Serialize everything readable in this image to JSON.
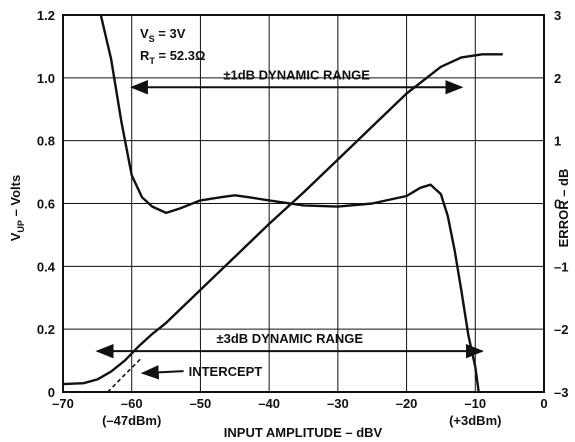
{
  "chart_data": {
    "type": "line",
    "xlabel": "INPUT AMPLITUDE – dBV",
    "ylabel_left": {
      "main": "V",
      "sub": "UP",
      "rest": " – Volts"
    },
    "ylabel_right": "ERROR – dB",
    "xlim": [
      -70,
      0
    ],
    "ylim_left": [
      0,
      1.2
    ],
    "ylim_right": [
      -3,
      3
    ],
    "x_ticks": [
      -70,
      -60,
      -50,
      -40,
      -30,
      -20,
      -10,
      0
    ],
    "x_tick_labels": [
      "–70",
      "–60",
      "–50",
      "–40",
      "–30",
      "–20",
      "–10",
      "0"
    ],
    "y_left_ticks": [
      0,
      0.2,
      0.4,
      0.6,
      0.8,
      1.0,
      1.2
    ],
    "y_left_tick_labels": [
      "0",
      "0.2",
      "0.4",
      "0.6",
      "0.8",
      "1.0",
      "1.2"
    ],
    "y_right_ticks": [
      -3,
      -2,
      -1,
      0,
      1,
      2,
      3
    ],
    "y_right_tick_labels": [
      "–3",
      "–2",
      "–1",
      "0",
      "1",
      "2",
      "3"
    ],
    "grid": true,
    "sub_labels": [
      {
        "x": -60,
        "text": "(–47dBm)"
      },
      {
        "x": -10,
        "text": "(+3dBm)"
      }
    ],
    "conditions": [
      {
        "main": "V",
        "sub": "S",
        "rest": " = 3V"
      },
      {
        "main": "R",
        "sub": "T",
        "rest": " = 52.3Ω"
      }
    ],
    "series": [
      {
        "axis": "left",
        "style": "solid",
        "points": [
          [
            -70,
            0.025
          ],
          [
            -67,
            0.028
          ],
          [
            -65,
            0.04
          ],
          [
            -63,
            0.065
          ],
          [
            -61,
            0.1
          ],
          [
            -59,
            0.145
          ],
          [
            -57,
            0.185
          ],
          [
            -55,
            0.22
          ],
          [
            -50,
            0.325
          ],
          [
            -45,
            0.43
          ],
          [
            -40,
            0.535
          ],
          [
            -35,
            0.635
          ],
          [
            -30,
            0.74
          ],
          [
            -25,
            0.845
          ],
          [
            -20,
            0.95
          ],
          [
            -15,
            1.035
          ],
          [
            -12,
            1.065
          ],
          [
            -9,
            1.075
          ],
          [
            -6,
            1.075
          ]
        ]
      },
      {
        "axis": "right",
        "style": "solid",
        "points": [
          [
            -64.5,
            3.0
          ],
          [
            -63,
            2.3
          ],
          [
            -61.5,
            1.3
          ],
          [
            -60,
            0.45
          ],
          [
            -58.5,
            0.1
          ],
          [
            -57,
            -0.05
          ],
          [
            -55,
            -0.15
          ],
          [
            -53,
            -0.08
          ],
          [
            -50,
            0.05
          ],
          [
            -47,
            0.1
          ],
          [
            -45,
            0.13
          ],
          [
            -43,
            0.1
          ],
          [
            -40,
            0.05
          ],
          [
            -35,
            -0.03
          ],
          [
            -30,
            -0.05
          ],
          [
            -25,
            0.0
          ],
          [
            -20,
            0.12
          ],
          [
            -18,
            0.25
          ],
          [
            -16.5,
            0.3
          ],
          [
            -15,
            0.15
          ],
          [
            -14,
            -0.2
          ],
          [
            -13,
            -0.75
          ],
          [
            -12,
            -1.4
          ],
          [
            -11,
            -2.1
          ],
          [
            -10,
            -2.6
          ],
          [
            -9.5,
            -3.0
          ]
        ]
      },
      {
        "axis": "left",
        "style": "dashed",
        "points": [
          [
            -63.5,
            0.0
          ],
          [
            -61,
            0.055
          ],
          [
            -58.5,
            0.11
          ]
        ]
      }
    ],
    "annotations": [
      {
        "id": "range-1db",
        "text": "±1dB DYNAMIC RANGE",
        "from": -60,
        "to": -12,
        "y_left": 0.97
      },
      {
        "id": "range-3db",
        "text": "±3dB DYNAMIC RANGE",
        "from": -65,
        "to": -9,
        "y_left": 0.13
      },
      {
        "id": "intercept",
        "text": "INTERCEPT",
        "tip": [
          -59,
          0.06
        ]
      }
    ]
  }
}
